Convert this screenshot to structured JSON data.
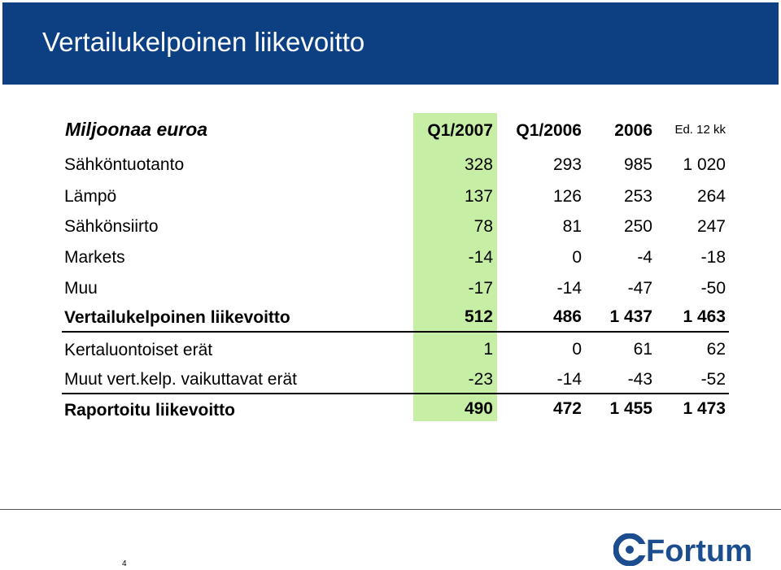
{
  "slide": {
    "title": "Vertailukelpoinen liikevoitto",
    "page_number": "4",
    "logo_text": "Fortum"
  },
  "table": {
    "unit_label": "Miljoonaa euroa",
    "columns": [
      "Q1/2007",
      "Q1/2006",
      "2006",
      "Ed. 12 kk"
    ],
    "rows": [
      {
        "label": "Sähköntuotanto",
        "values": [
          "328",
          "293",
          "985",
          "1 020"
        ]
      },
      {
        "label": "Lämpö",
        "values": [
          "137",
          "126",
          "253",
          "264"
        ]
      },
      {
        "label": "Sähkönsiirto",
        "values": [
          "78",
          "81",
          "250",
          "247"
        ]
      },
      {
        "label": "Markets",
        "values": [
          "-14",
          "0",
          "-4",
          "-18"
        ]
      },
      {
        "label": "Muu",
        "values": [
          "-17",
          "-14",
          "-47",
          "-50"
        ]
      },
      {
        "label": "Vertailukelpoinen liikevoitto",
        "values": [
          "512",
          "486",
          "1 437",
          "1 463"
        ]
      },
      {
        "label": "Kertaluontoiset erät",
        "values": [
          "1",
          "0",
          "61",
          "62"
        ]
      },
      {
        "label": "Muut vert.kelp. vaikuttavat erät",
        "values": [
          "-23",
          "-14",
          "-43",
          "-52"
        ]
      },
      {
        "label": "Raportoitu liikevoitto",
        "values": [
          "490",
          "472",
          "1 455",
          "1 473"
        ]
      }
    ]
  },
  "colors": {
    "title_bar": "#0d4083",
    "highlight_column": "#c6eea4",
    "logo": "#1b4d8f"
  }
}
